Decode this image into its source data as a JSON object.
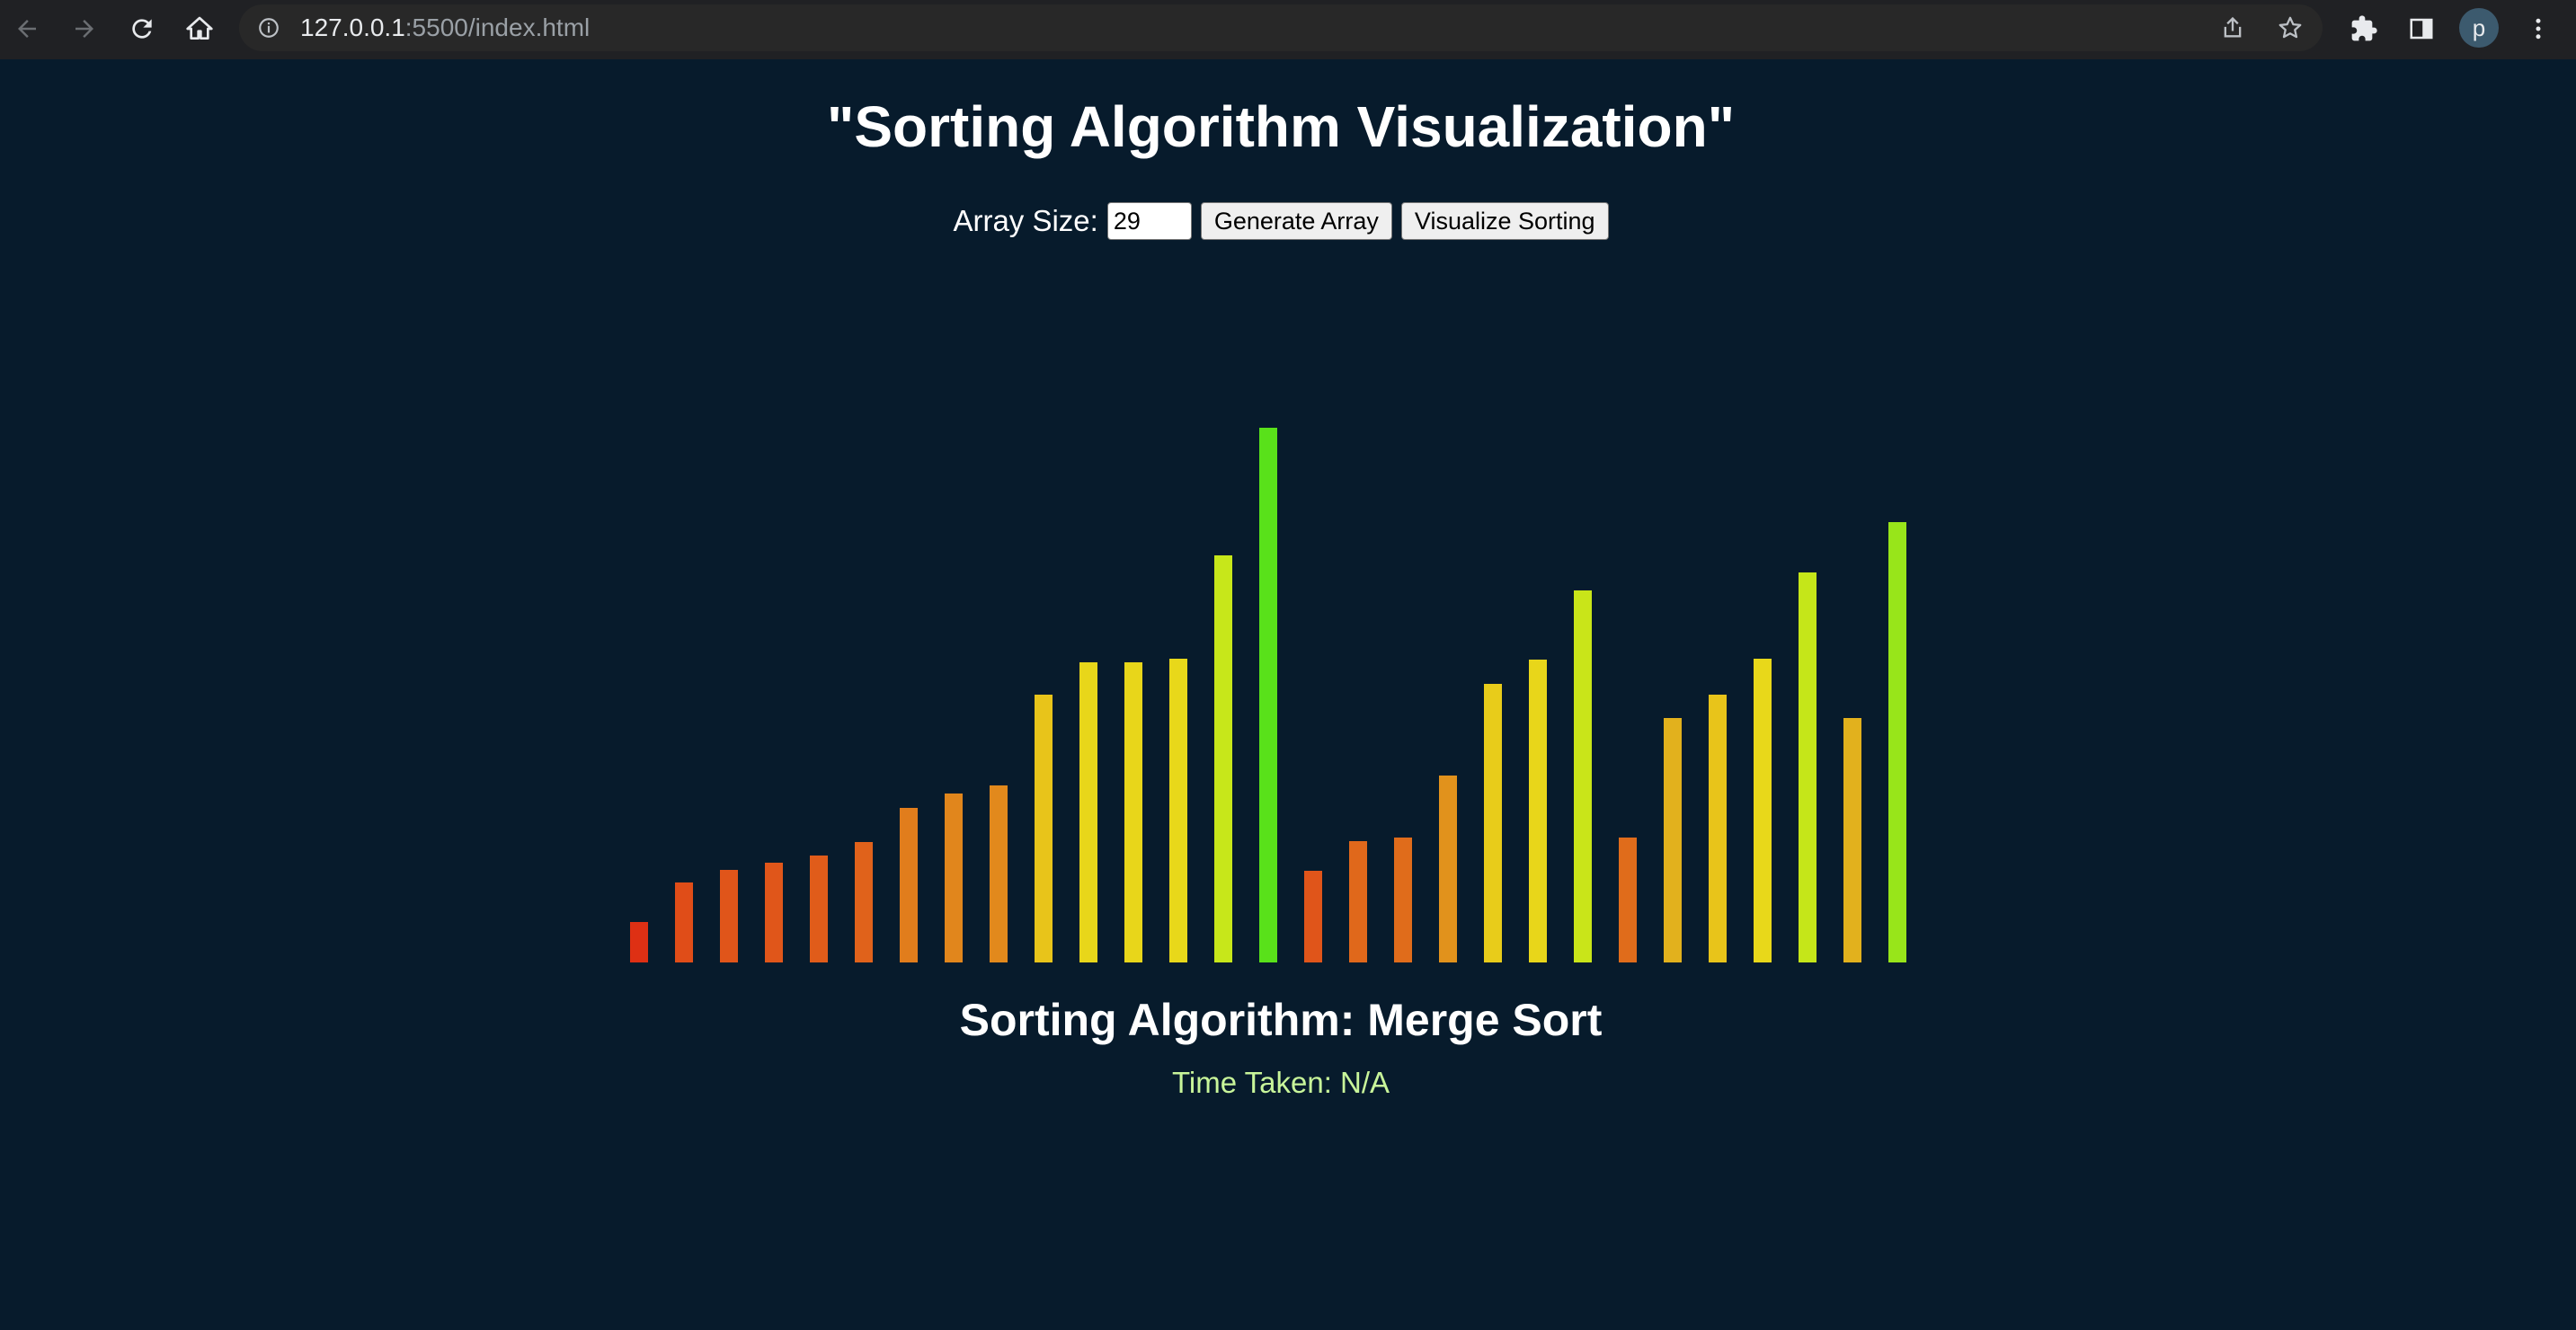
{
  "browser": {
    "url_host": "127.0.0.1",
    "url_rest": ":5500/index.html",
    "avatar_letter": "p"
  },
  "page": {
    "title": "\"Sorting Algorithm Visualization\"",
    "array_size_label": "Array Size:",
    "array_size_value": "29",
    "generate_button": "Generate Array",
    "visualize_button": "Visualize Sorting",
    "algorithm_label": "Sorting Algorithm: Merge Sort",
    "time_taken": "Time Taken: N/A"
  },
  "chart_data": {
    "type": "bar",
    "values": [
      45,
      89,
      103,
      111,
      119,
      134,
      172,
      188,
      197,
      298,
      334,
      334,
      338,
      453,
      595,
      102,
      135,
      139,
      208,
      310,
      337,
      414,
      139,
      272,
      298,
      338,
      434,
      272,
      490
    ],
    "colors": [
      "#de3014",
      "#e04d18",
      "#e0551a",
      "#e0561a",
      "#e05c1a",
      "#e0621b",
      "#e17d1c",
      "#e1861c",
      "#e2891c",
      "#e8c41a",
      "#e8d61a",
      "#e8d61a",
      "#e8d81a",
      "#c7e71a",
      "#59e11a",
      "#e0551a",
      "#e0681b",
      "#e06c1b",
      "#e1921c",
      "#e8cc1a",
      "#e8d61a",
      "#c9e519",
      "#e06c1b",
      "#e2b11d",
      "#e8c41a",
      "#e8d81a",
      "#c5e619",
      "#e2b11d",
      "#98e51a"
    ]
  }
}
